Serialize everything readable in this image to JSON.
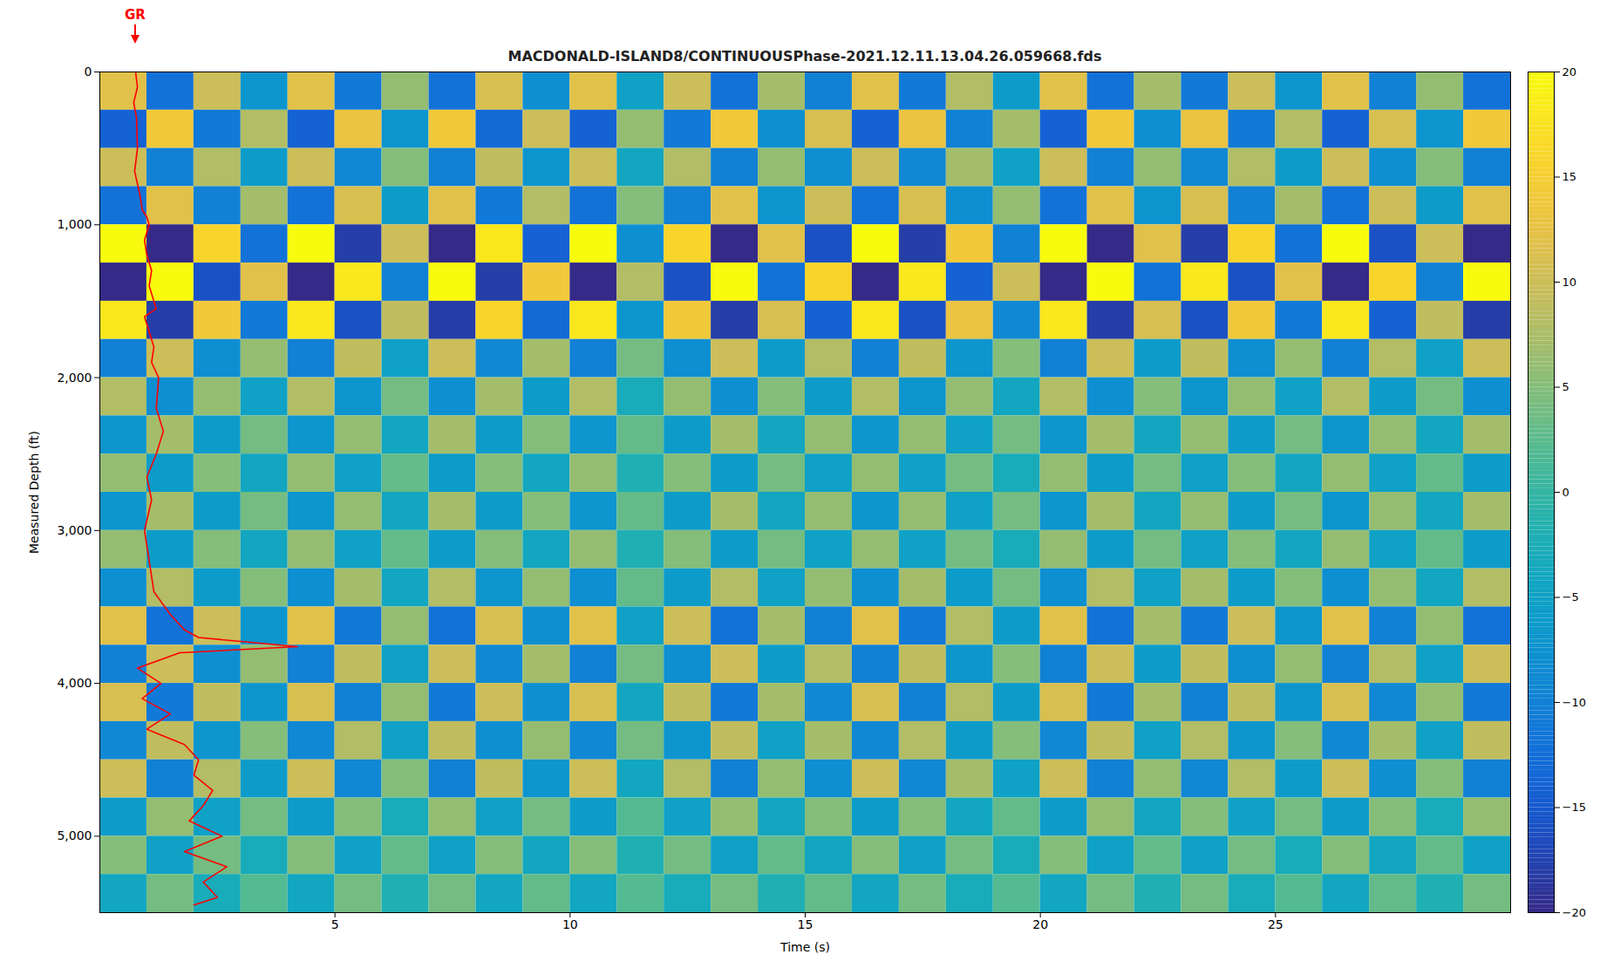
{
  "chart_data": {
    "type": "heatmap",
    "title": "MACDONALD-ISLAND8/CONTINUOUSPhase-2021.12.11.13.04.26.059668.fds",
    "x_label": "Time (s)",
    "y_label": "Measured Depth (ft)",
    "xlim": [
      0,
      30
    ],
    "ylim": [
      0,
      5500
    ],
    "xticks": [
      5,
      10,
      15,
      20,
      25
    ],
    "yticks": [
      0,
      1000,
      2000,
      3000,
      4000,
      5000
    ],
    "x_edges": [
      0,
      1,
      2,
      3,
      4,
      5,
      6,
      7,
      8,
      9,
      10,
      11,
      12,
      13,
      14,
      15,
      16,
      17,
      18,
      19,
      20,
      21,
      22,
      23,
      24,
      25,
      26,
      27,
      28,
      29,
      30
    ],
    "y_edges": [
      0,
      250,
      500,
      750,
      1000,
      1250,
      1500,
      1750,
      2000,
      2250,
      2500,
      2750,
      3000,
      3250,
      3500,
      3750,
      4000,
      4250,
      4500,
      4750,
      5000,
      5250,
      5500
    ],
    "cells": [
      [
        12,
        -12,
        10,
        -7,
        12,
        -11,
        6,
        -12,
        11,
        -8,
        12,
        -5,
        10,
        -12,
        7,
        -10,
        12,
        -11,
        8,
        -6,
        12,
        -12,
        7,
        -11,
        10,
        -7,
        12,
        -10,
        6,
        -12
      ],
      [
        -14,
        14,
        -11,
        8,
        -14,
        13,
        -7,
        14,
        -13,
        10,
        -14,
        6,
        -11,
        14,
        -8,
        11,
        -14,
        13,
        -10,
        7,
        -14,
        14,
        -8,
        13,
        -11,
        8,
        -14,
        11,
        -7,
        14
      ],
      [
        10,
        -10,
        8,
        -6,
        10,
        -9,
        5,
        -10,
        9,
        -7,
        10,
        -4,
        8,
        -10,
        6,
        -8,
        10,
        -9,
        7,
        -5,
        10,
        -10,
        6,
        -9,
        8,
        -6,
        10,
        -8,
        5,
        -10
      ],
      [
        -12,
        12,
        -10,
        7,
        -12,
        11,
        -6,
        12,
        -11,
        8,
        -12,
        5,
        -10,
        12,
        -7,
        10,
        -12,
        11,
        -8,
        6,
        -12,
        12,
        -7,
        11,
        -10,
        7,
        -12,
        10,
        -6,
        12
      ],
      [
        20,
        -20,
        16,
        -12,
        20,
        -18,
        10,
        -20,
        18,
        -14,
        20,
        -8,
        16,
        -20,
        12,
        -16,
        20,
        -18,
        14,
        -10,
        20,
        -20,
        12,
        -18,
        16,
        -12,
        20,
        -16,
        10,
        -20
      ],
      [
        -20,
        20,
        -16,
        12,
        -20,
        18,
        -10,
        20,
        -18,
        14,
        -20,
        8,
        -16,
        20,
        -12,
        16,
        -20,
        18,
        -14,
        10,
        -20,
        20,
        -12,
        18,
        -16,
        12,
        -20,
        16,
        -10,
        20
      ],
      [
        18,
        -18,
        14,
        -11,
        18,
        -16,
        9,
        -18,
        16,
        -13,
        18,
        -7,
        14,
        -18,
        11,
        -14,
        18,
        -16,
        13,
        -9,
        18,
        -18,
        11,
        -16,
        14,
        -11,
        18,
        -14,
        9,
        -18
      ],
      [
        -10,
        10,
        -8,
        6,
        -10,
        9,
        -5,
        10,
        -9,
        7,
        -10,
        4,
        -8,
        10,
        -6,
        8,
        -10,
        9,
        -7,
        5,
        -10,
        10,
        -6,
        9,
        -8,
        6,
        -10,
        8,
        -5,
        10
      ],
      [
        8,
        -8,
        6,
        -5,
        8,
        -7,
        4,
        -8,
        7,
        -6,
        8,
        -3,
        6,
        -8,
        5,
        -6,
        8,
        -7,
        6,
        -4,
        8,
        -8,
        5,
        -7,
        6,
        -5,
        8,
        -6,
        4,
        -8
      ],
      [
        -7,
        7,
        -6,
        4,
        -7,
        6,
        -4,
        7,
        -6,
        5,
        -7,
        3,
        -6,
        7,
        -4,
        6,
        -7,
        6,
        -5,
        4,
        -7,
        7,
        -4,
        6,
        -6,
        4,
        -7,
        6,
        -4,
        7
      ],
      [
        6,
        -6,
        5,
        -4,
        6,
        -5,
        3,
        -6,
        5,
        -4,
        6,
        -2,
        5,
        -6,
        4,
        -5,
        6,
        -5,
        4,
        -3,
        6,
        -6,
        4,
        -5,
        5,
        -4,
        6,
        -5,
        3,
        -6
      ],
      [
        -7,
        7,
        -6,
        4,
        -7,
        6,
        -4,
        7,
        -6,
        5,
        -7,
        3,
        -6,
        7,
        -4,
        6,
        -7,
        6,
        -5,
        4,
        -7,
        7,
        -4,
        6,
        -6,
        4,
        -7,
        6,
        -4,
        7
      ],
      [
        6,
        -6,
        5,
        -4,
        6,
        -5,
        3,
        -6,
        5,
        -4,
        6,
        -2,
        5,
        -6,
        4,
        -5,
        6,
        -5,
        4,
        -3,
        6,
        -6,
        4,
        -5,
        5,
        -4,
        6,
        -5,
        3,
        -6
      ],
      [
        -8,
        8,
        -6,
        5,
        -8,
        7,
        -4,
        8,
        -7,
        6,
        -8,
        3,
        -6,
        8,
        -5,
        6,
        -8,
        7,
        -6,
        4,
        -8,
        8,
        -5,
        7,
        -6,
        5,
        -8,
        6,
        -4,
        8
      ],
      [
        12,
        -12,
        10,
        -7,
        12,
        -11,
        6,
        -12,
        11,
        -8,
        12,
        -5,
        10,
        -12,
        7,
        -10,
        12,
        -11,
        8,
        -6,
        12,
        -12,
        7,
        -11,
        10,
        -7,
        12,
        -10,
        6,
        -12
      ],
      [
        -10,
        10,
        -8,
        6,
        -10,
        9,
        -5,
        10,
        -9,
        7,
        -10,
        4,
        -8,
        10,
        -6,
        8,
        -10,
        9,
        -7,
        5,
        -10,
        10,
        -6,
        9,
        -8,
        6,
        -10,
        8,
        -5,
        10
      ],
      [
        11,
        -11,
        9,
        -7,
        11,
        -10,
        6,
        -11,
        10,
        -8,
        11,
        -4,
        9,
        -11,
        7,
        -9,
        11,
        -10,
        8,
        -6,
        11,
        -11,
        7,
        -10,
        9,
        -7,
        11,
        -9,
        6,
        -11
      ],
      [
        -9,
        9,
        -7,
        5,
        -9,
        8,
        -5,
        9,
        -8,
        6,
        -9,
        4,
        -7,
        9,
        -5,
        7,
        -9,
        8,
        -6,
        5,
        -9,
        9,
        -5,
        8,
        -7,
        5,
        -9,
        7,
        -5,
        9
      ],
      [
        10,
        -10,
        8,
        -6,
        10,
        -9,
        5,
        -10,
        9,
        -7,
        10,
        -4,
        8,
        -10,
        6,
        -8,
        10,
        -9,
        7,
        -5,
        10,
        -10,
        6,
        -9,
        8,
        -6,
        10,
        -8,
        5,
        -10
      ],
      [
        -6,
        6,
        -5,
        4,
        -6,
        5,
        -3,
        6,
        -5,
        4,
        -6,
        2,
        -5,
        6,
        -4,
        5,
        -6,
        5,
        -4,
        3,
        -6,
        6,
        -4,
        5,
        -5,
        4,
        -6,
        5,
        -3,
        6
      ],
      [
        5,
        -5,
        4,
        -3,
        5,
        -5,
        3,
        -5,
        5,
        -4,
        5,
        -2,
        4,
        -5,
        3,
        -4,
        5,
        -5,
        4,
        -3,
        5,
        -5,
        3,
        -5,
        4,
        -3,
        5,
        -4,
        3,
        -5
      ],
      [
        -4,
        4,
        -3,
        2,
        -4,
        4,
        -2,
        4,
        -4,
        3,
        -4,
        2,
        -3,
        4,
        -2,
        3,
        -4,
        4,
        -3,
        2,
        -4,
        4,
        -2,
        4,
        -3,
        2,
        -4,
        3,
        -2,
        4
      ]
    ],
    "colorbar": {
      "range": [
        -20,
        20
      ],
      "ticks": [
        -20,
        -15,
        -10,
        -5,
        0,
        5,
        10,
        15,
        20
      ]
    },
    "series": [
      {
        "name": "GR",
        "color": "#ff0000",
        "x": [
          0.76,
          0.8,
          0.72,
          0.78,
          0.8,
          0.74,
          0.85,
          0.9,
          1.0,
          1.05,
          0.95,
          1.0,
          1.1,
          1.05,
          1.2,
          0.95,
          1.05,
          1.15,
          1.1,
          1.25,
          1.2,
          1.35,
          1.2,
          1.0,
          1.1,
          0.95,
          1.05,
          1.15,
          1.5,
          1.8,
          2.1,
          4.2,
          1.7,
          0.8,
          1.3,
          0.9,
          1.5,
          1.0,
          1.8,
          2.1,
          2.0,
          2.4,
          2.2,
          1.9,
          2.6,
          1.8,
          2.7,
          2.2,
          2.5,
          2.0
        ],
        "y": [
          0,
          100,
          200,
          300,
          500,
          650,
          800,
          900,
          950,
          1000,
          1100,
          1200,
          1300,
          1400,
          1550,
          1600,
          1700,
          1800,
          1900,
          2000,
          2200,
          2350,
          2500,
          2650,
          2800,
          3000,
          3200,
          3400,
          3550,
          3650,
          3700,
          3760,
          3800,
          3900,
          4000,
          4100,
          4200,
          4300,
          4400,
          4500,
          4600,
          4700,
          4800,
          4900,
          5000,
          5100,
          5200,
          5300,
          5400,
          5450
        ]
      }
    ],
    "annotations": [
      {
        "text": "GR",
        "color": "#ff0000"
      }
    ]
  }
}
